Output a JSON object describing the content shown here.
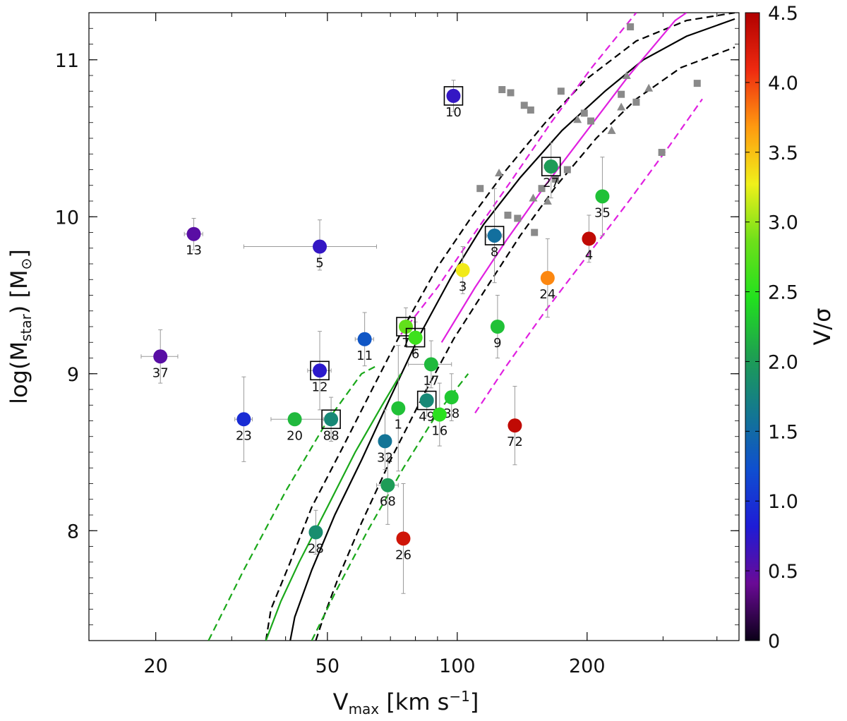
{
  "chart_data": {
    "type": "scatter",
    "xlabel": {
      "main": "V",
      "sub": "max",
      "units": "[km s",
      "sup": "−1",
      "close": "]"
    },
    "ylabel": {
      "main": "log(M",
      "sub": "star",
      "close": ") [M",
      "odot": "⊙",
      "end": "]"
    },
    "xscale": "log",
    "xlim": [
      14,
      450
    ],
    "ylim": [
      7.3,
      11.3
    ],
    "xticks": [
      {
        "v": 20,
        "label": "20"
      },
      {
        "v": 50,
        "label": "50"
      },
      {
        "v": 100,
        "label": "100"
      },
      {
        "v": 200,
        "label": "200"
      }
    ],
    "xminor": [
      30,
      40,
      60,
      70,
      80,
      90,
      300,
      400
    ],
    "yticks": [
      {
        "v": 8,
        "label": "8"
      },
      {
        "v": 9,
        "label": "9"
      },
      {
        "v": 10,
        "label": "10"
      },
      {
        "v": 11,
        "label": "11"
      }
    ],
    "colorbar": {
      "label": "V/σ",
      "range": [
        0,
        4.5
      ],
      "ticks": [
        "0",
        "0.5",
        "1.0",
        "1.5",
        "2.0",
        "2.5",
        "3.0",
        "3.5",
        "4.0",
        "4.5"
      ],
      "colormap": [
        "#0b0018",
        "#6a0a96",
        "#1e1cd6",
        "#0f4fd0",
        "#137890",
        "#1ea050",
        "#22e11e",
        "#6ee01a",
        "#f0f01a",
        "#ff9a10",
        "#ee2a10",
        "#b10000"
      ]
    },
    "galaxies": [
      {
        "id": "10",
        "x": 98,
        "y": 10.77,
        "vs": 0.7,
        "boxed": true,
        "ey": [
          0.1,
          0.1
        ],
        "ex": [
          0,
          0
        ]
      },
      {
        "id": "27",
        "x": 165,
        "y": 10.32,
        "vs": 2.0,
        "boxed": true,
        "ey": [
          0.2,
          0.15
        ],
        "ex": [
          6,
          8
        ]
      },
      {
        "id": "35",
        "x": 217,
        "y": 10.13,
        "vs": 2.25,
        "boxed": false,
        "ey": [
          0.25,
          0.25
        ],
        "ex": [
          0,
          0
        ]
      },
      {
        "id": "8",
        "x": 122,
        "y": 9.88,
        "vs": 1.55,
        "boxed": true,
        "ey": [
          0.3,
          0.3
        ],
        "ex": [
          5,
          5
        ]
      },
      {
        "id": "13",
        "x": 24.5,
        "y": 9.89,
        "vs": 0.5,
        "boxed": false,
        "ey": [
          0.1,
          0.1
        ],
        "ex": [
          1.2,
          1.2
        ]
      },
      {
        "id": "5",
        "x": 48,
        "y": 9.81,
        "vs": 0.7,
        "boxed": false,
        "ey": [
          0.15,
          0.17
        ],
        "ex": [
          16,
          17
        ]
      },
      {
        "id": "4",
        "x": 202,
        "y": 9.86,
        "vs": 4.4,
        "boxed": false,
        "ey": [
          0.15,
          0.15
        ],
        "ex": [
          0,
          0
        ]
      },
      {
        "id": "3",
        "x": 103,
        "y": 9.66,
        "vs": 3.3,
        "boxed": false,
        "ey": [
          0.15,
          0.15
        ],
        "ex": [
          0,
          0
        ]
      },
      {
        "id": "24",
        "x": 162,
        "y": 9.61,
        "vs": 3.75,
        "boxed": false,
        "ey": [
          0.25,
          0.25
        ],
        "ex": [
          0,
          0
        ]
      },
      {
        "id": "7",
        "x": 76,
        "y": 9.3,
        "vs": 2.8,
        "boxed": true,
        "ey": [
          0.12,
          0.12
        ],
        "ex": [
          2,
          2
        ]
      },
      {
        "id": "6",
        "x": 80,
        "y": 9.23,
        "vs": 2.6,
        "boxed": true,
        "ey": [
          0.1,
          0.1
        ],
        "ex": [
          2,
          2
        ]
      },
      {
        "id": "9",
        "x": 124,
        "y": 9.3,
        "vs": 2.25,
        "boxed": false,
        "ey": [
          0.2,
          0.2
        ],
        "ex": [
          0,
          0
        ]
      },
      {
        "id": "11",
        "x": 61,
        "y": 9.22,
        "vs": 1.3,
        "boxed": false,
        "ey": [
          0.17,
          0.17
        ],
        "ex": [
          3,
          3
        ]
      },
      {
        "id": "12",
        "x": 48,
        "y": 9.02,
        "vs": 0.75,
        "boxed": true,
        "ey": [
          0.25,
          0.25
        ],
        "ex": [
          3,
          3
        ]
      },
      {
        "id": "37",
        "x": 20.5,
        "y": 9.11,
        "vs": 0.5,
        "boxed": false,
        "ey": [
          0.17,
          0.17
        ],
        "ex": [
          2,
          2
        ]
      },
      {
        "id": "17",
        "x": 87,
        "y": 9.06,
        "vs": 2.2,
        "boxed": false,
        "ey": [
          0.15,
          0.15
        ],
        "ex": [
          10,
          10
        ]
      },
      {
        "id": "49",
        "x": 85,
        "y": 8.83,
        "vs": 1.8,
        "boxed": true,
        "ey": [
          0.1,
          0.1
        ],
        "ex": [
          3,
          3
        ]
      },
      {
        "id": "38",
        "x": 97,
        "y": 8.85,
        "vs": 2.3,
        "boxed": false,
        "ey": [
          0.15,
          0.15
        ],
        "ex": [
          0,
          0
        ]
      },
      {
        "id": "16",
        "x": 91,
        "y": 8.74,
        "vs": 2.5,
        "boxed": false,
        "ey": [
          0.2,
          0.2
        ],
        "ex": [
          0,
          0
        ]
      },
      {
        "id": "1",
        "x": 73,
        "y": 8.78,
        "vs": 2.25,
        "boxed": false,
        "ey": [
          0.4,
          0.4
        ],
        "ex": [
          0,
          0
        ]
      },
      {
        "id": "23",
        "x": 32,
        "y": 8.71,
        "vs": 0.95,
        "boxed": false,
        "ey": [
          0.27,
          0.27
        ],
        "ex": [
          1.5,
          1.5
        ]
      },
      {
        "id": "20",
        "x": 42,
        "y": 8.71,
        "vs": 2.2,
        "boxed": false,
        "ey": [
          0.03,
          0.03
        ],
        "ex": [
          5,
          7
        ]
      },
      {
        "id": "88",
        "x": 51,
        "y": 8.71,
        "vs": 1.8,
        "boxed": true,
        "ey": [
          0.14,
          0.14
        ],
        "ex": [
          0,
          0
        ]
      },
      {
        "id": "72",
        "x": 136,
        "y": 8.67,
        "vs": 4.4,
        "boxed": false,
        "ey": [
          0.25,
          0.25
        ],
        "ex": [
          0,
          0
        ]
      },
      {
        "id": "32",
        "x": 68,
        "y": 8.57,
        "vs": 1.6,
        "boxed": false,
        "ey": [
          0.18,
          0.2
        ],
        "ex": [
          0,
          0
        ]
      },
      {
        "id": "68",
        "x": 69,
        "y": 8.29,
        "vs": 2.0,
        "boxed": false,
        "ey": [
          0.25,
          0.2
        ],
        "ex": [
          4,
          4
        ]
      },
      {
        "id": "28",
        "x": 47,
        "y": 7.99,
        "vs": 1.85,
        "boxed": false,
        "ey": [
          0.14,
          0.14
        ],
        "ex": [
          0,
          0
        ]
      },
      {
        "id": "26",
        "x": 75,
        "y": 7.95,
        "vs": 4.3,
        "boxed": false,
        "ey": [
          0.35,
          0.35
        ],
        "ex": [
          0,
          0
        ]
      }
    ],
    "comparison_squares": [
      [
        113,
        10.18
      ],
      [
        127,
        10.81
      ],
      [
        133,
        10.79
      ],
      [
        143,
        10.71
      ],
      [
        148,
        10.68
      ],
      [
        131,
        10.01
      ],
      [
        138,
        9.99
      ],
      [
        151,
        9.9
      ],
      [
        174,
        10.8
      ],
      [
        197,
        10.66
      ],
      [
        204,
        10.61
      ],
      [
        157,
        10.18
      ],
      [
        169,
        10.24
      ],
      [
        180,
        10.3
      ],
      [
        240,
        10.78
      ],
      [
        260,
        10.73
      ],
      [
        252,
        11.21
      ],
      [
        360,
        10.85
      ],
      [
        298,
        10.41
      ]
    ],
    "comparison_triangles": [
      [
        125,
        10.28
      ],
      [
        150,
        10.12
      ],
      [
        162,
        10.1
      ],
      [
        190,
        10.62
      ],
      [
        228,
        10.55
      ],
      [
        240,
        10.7
      ],
      [
        247,
        10.9
      ],
      [
        278,
        10.82
      ]
    ],
    "relations": [
      {
        "style": "solid",
        "color": "#000000",
        "points": [
          [
            41,
            7.3
          ],
          [
            42,
            7.45
          ],
          [
            46,
            7.75
          ],
          [
            52,
            8.1
          ],
          [
            60,
            8.45
          ],
          [
            70,
            8.85
          ],
          [
            82,
            9.25
          ],
          [
            97,
            9.62
          ],
          [
            115,
            9.95
          ],
          [
            140,
            10.25
          ],
          [
            175,
            10.55
          ],
          [
            220,
            10.8
          ],
          [
            270,
            11.0
          ],
          [
            340,
            11.15
          ],
          [
            440,
            11.26
          ]
        ]
      },
      {
        "style": "dashed",
        "color": "#000000",
        "points": [
          [
            36,
            7.3
          ],
          [
            37,
            7.5
          ],
          [
            41,
            7.8
          ],
          [
            46,
            8.15
          ],
          [
            54,
            8.52
          ],
          [
            64,
            8.92
          ],
          [
            76,
            9.32
          ],
          [
            90,
            9.68
          ],
          [
            108,
            10.0
          ],
          [
            130,
            10.3
          ],
          [
            160,
            10.6
          ],
          [
            200,
            10.88
          ],
          [
            260,
            11.12
          ],
          [
            340,
            11.25
          ],
          [
            440,
            11.3
          ]
        ]
      },
      {
        "style": "dashed",
        "color": "#000000",
        "points": [
          [
            47,
            7.3
          ],
          [
            49,
            7.45
          ],
          [
            53,
            7.7
          ],
          [
            60,
            8.05
          ],
          [
            70,
            8.45
          ],
          [
            83,
            8.85
          ],
          [
            98,
            9.22
          ],
          [
            117,
            9.55
          ],
          [
            140,
            9.88
          ],
          [
            170,
            10.2
          ],
          [
            210,
            10.5
          ],
          [
            260,
            10.75
          ],
          [
            330,
            10.95
          ],
          [
            440,
            11.08
          ]
        ]
      },
      {
        "style": "solid",
        "color": "#e020e0",
        "points": [
          [
            92,
            9.2
          ],
          [
            110,
            9.55
          ],
          [
            130,
            9.85
          ],
          [
            160,
            10.2
          ],
          [
            200,
            10.55
          ],
          [
            250,
            10.9
          ],
          [
            320,
            11.25
          ],
          [
            340,
            11.3
          ]
        ]
      },
      {
        "style": "dashed",
        "color": "#e020e0",
        "points": [
          [
            74,
            9.25
          ],
          [
            90,
            9.55
          ],
          [
            110,
            9.9
          ],
          [
            135,
            10.25
          ],
          [
            165,
            10.6
          ],
          [
            205,
            10.95
          ],
          [
            260,
            11.3
          ]
        ]
      },
      {
        "style": "dashed",
        "color": "#e020e0",
        "points": [
          [
            110,
            8.75
          ],
          [
            130,
            9.05
          ],
          [
            160,
            9.4
          ],
          [
            200,
            9.75
          ],
          [
            250,
            10.1
          ],
          [
            310,
            10.45
          ],
          [
            370,
            10.75
          ]
        ]
      },
      {
        "style": "solid",
        "color": "#1aa81a",
        "points": [
          [
            36,
            7.3
          ],
          [
            39,
            7.55
          ],
          [
            43,
            7.8
          ],
          [
            50,
            8.15
          ],
          [
            58,
            8.5
          ],
          [
            67,
            8.8
          ],
          [
            74,
            9.0
          ]
        ]
      },
      {
        "style": "dashed",
        "color": "#1aa81a",
        "points": [
          [
            26.5,
            7.3
          ],
          [
            32,
            7.75
          ],
          [
            40,
            8.25
          ],
          [
            50,
            8.7
          ],
          [
            60,
            9.0
          ],
          [
            65,
            9.05
          ]
        ]
      },
      {
        "style": "dashed",
        "color": "#1aa81a",
        "points": [
          [
            46,
            7.3
          ],
          [
            52,
            7.6
          ],
          [
            62,
            8.0
          ],
          [
            75,
            8.4
          ],
          [
            90,
            8.75
          ],
          [
            106,
            9.0
          ]
        ]
      }
    ]
  }
}
